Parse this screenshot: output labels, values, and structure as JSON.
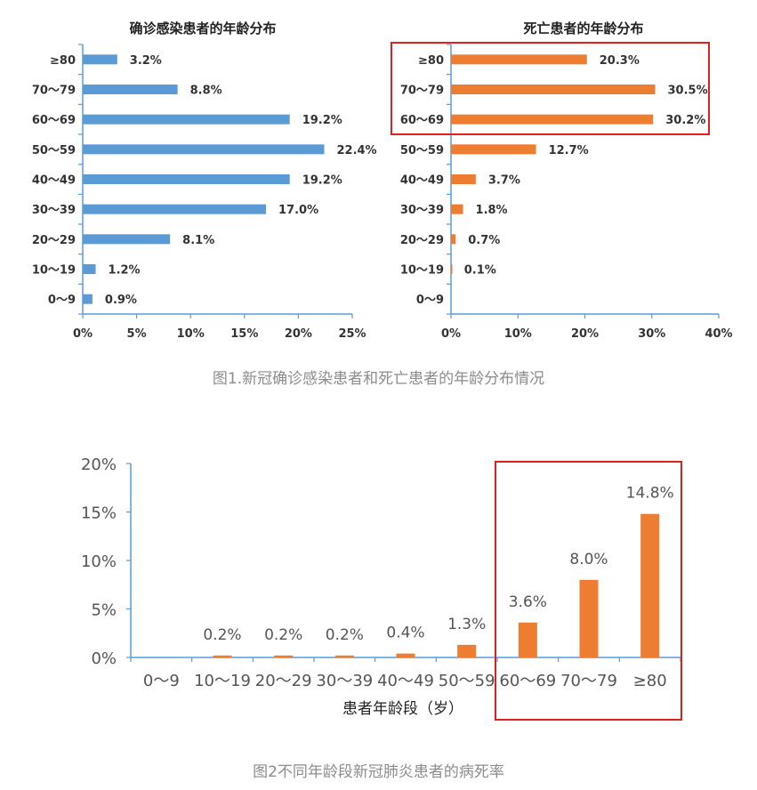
{
  "colors": {
    "left_bar": "#5b9bd5",
    "right_bar": "#ed7d31",
    "axis": "#5b9bd5",
    "highlight_box": "#e0201c",
    "caption": "#8c8c8c"
  },
  "figure1": {
    "caption": "图1.新冠确诊感染患者和死亡患者的年龄分布情况"
  },
  "figure2": {
    "caption": "图2不同年龄段新冠肺炎患者的病死率"
  },
  "chart_data": [
    {
      "type": "bar",
      "orientation": "horizontal",
      "title": "确诊感染患者的年龄分布",
      "categories": [
        "≥80",
        "70～79",
        "60～69",
        "50～59",
        "40～49",
        "30～39",
        "20～29",
        "10～19",
        "0～9"
      ],
      "values": [
        3.2,
        8.8,
        19.2,
        22.4,
        19.2,
        17.0,
        8.1,
        1.2,
        0.9
      ],
      "value_labels": [
        "3.2%",
        "8.8%",
        "19.2%",
        "22.4%",
        "19.2%",
        "17.0%",
        "8.1%",
        "1.2%",
        "0.9%"
      ],
      "xlim": [
        0,
        25
      ],
      "xticks": [
        "0%",
        "5%",
        "10%",
        "15%",
        "20%",
        "25%"
      ],
      "xlabel": "",
      "ylabel": ""
    },
    {
      "type": "bar",
      "orientation": "horizontal",
      "title": "死亡患者的年龄分布",
      "categories": [
        "≥80",
        "70～79",
        "60～69",
        "50～59",
        "40～49",
        "30～39",
        "20～29",
        "10～19",
        "0～9"
      ],
      "values": [
        20.3,
        30.5,
        30.2,
        12.7,
        3.7,
        1.8,
        0.7,
        0.1,
        0
      ],
      "value_labels": [
        "20.3%",
        "30.5%",
        "30.2%",
        "12.7%",
        "3.7%",
        "1.8%",
        "0.7%",
        "0.1%",
        ""
      ],
      "xlim": [
        0,
        40
      ],
      "xticks": [
        "0%",
        "10%",
        "20%",
        "30%",
        "40%"
      ],
      "highlighted_categories": [
        "≥80",
        "70～79",
        "60～69"
      ],
      "xlabel": "",
      "ylabel": ""
    },
    {
      "type": "bar",
      "orientation": "vertical",
      "title": "",
      "categories": [
        "0～9",
        "10～19",
        "20～29",
        "30～39",
        "40～49",
        "50～59",
        "60～69",
        "70～79",
        "≥80"
      ],
      "values": [
        0,
        0.2,
        0.2,
        0.2,
        0.4,
        1.3,
        3.6,
        8.0,
        14.8
      ],
      "value_labels": [
        "",
        "0.2%",
        "0.2%",
        "0.2%",
        "0.4%",
        "1.3%",
        "3.6%",
        "8.0%",
        "14.8%"
      ],
      "ylim": [
        0,
        20
      ],
      "yticks": [
        "0%",
        "5%",
        "10%",
        "15%",
        "20%"
      ],
      "xlabel": "患者年龄段（岁）",
      "ylabel": "",
      "highlighted_categories": [
        "60～69",
        "70～79",
        "≥80"
      ]
    }
  ]
}
